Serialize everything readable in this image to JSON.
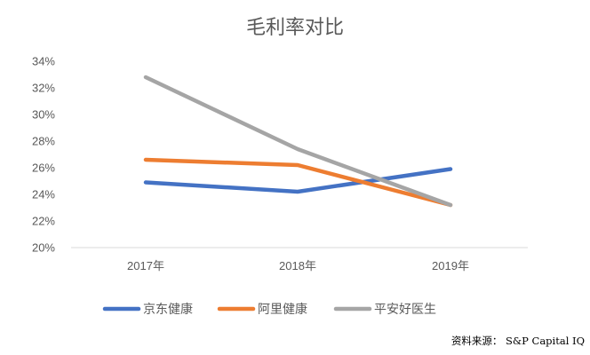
{
  "chart_data": {
    "type": "line",
    "title": "毛利率对比",
    "categories": [
      "2017年",
      "2018年",
      "2019年"
    ],
    "y_ticks": [
      "20%",
      "22%",
      "24%",
      "26%",
      "28%",
      "30%",
      "32%",
      "34%"
    ],
    "ylim": [
      20,
      34
    ],
    "grid": false,
    "legend_position": "bottom",
    "series": [
      {
        "name": "京东健康",
        "values": [
          24.9,
          24.2,
          25.9
        ],
        "color": "#4472C4"
      },
      {
        "name": "阿里健康",
        "values": [
          26.6,
          26.2,
          23.2
        ],
        "color": "#ED7D31"
      },
      {
        "name": "平安好医生",
        "values": [
          32.8,
          27.4,
          23.2
        ],
        "color": "#A5A5A5"
      }
    ]
  },
  "source_note": "资料来源： S&P Capital IQ"
}
